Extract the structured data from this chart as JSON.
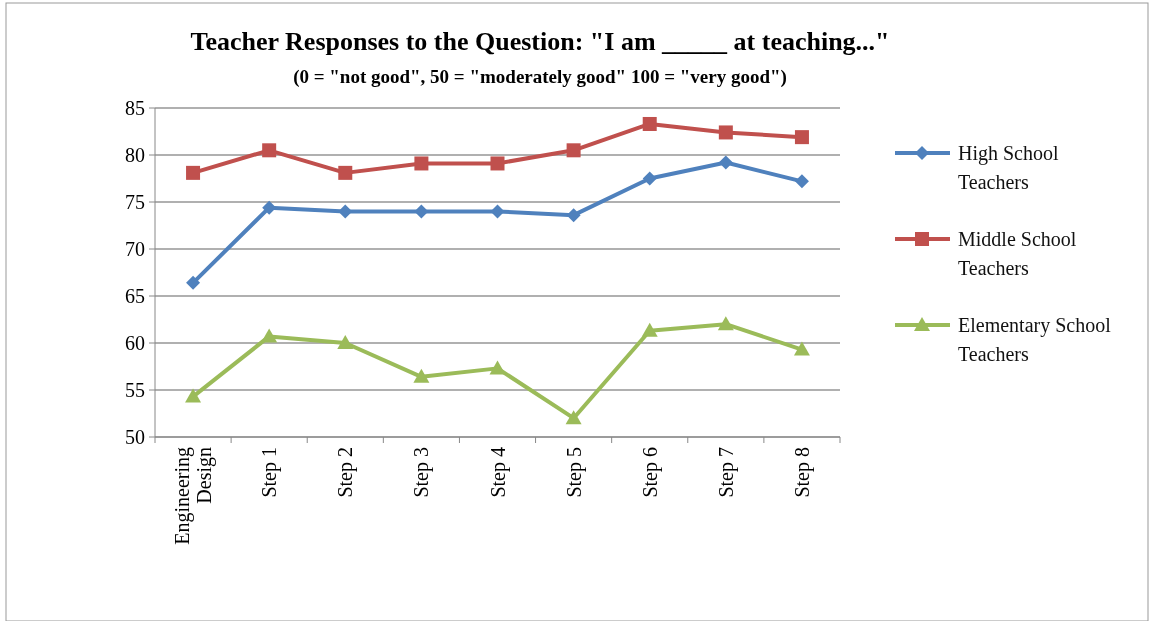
{
  "chart_data": {
    "type": "line",
    "title": "Teacher Responses to the Question: \"I am _____ at teaching...\"",
    "subtitle": "(0 = \"not good\", 50 = \"moderately good\" 100 = \"very good\")",
    "categories": [
      "Engineering Design",
      "Step 1",
      "Step 2",
      "Step 3",
      "Step 4",
      "Step 5",
      "Step 6",
      "Step 7",
      "Step 8"
    ],
    "series": [
      {
        "name": "High School Teachers",
        "color": "#4f81bd",
        "marker": "diamond",
        "values": [
          66.4,
          74.4,
          74.0,
          74.0,
          74.0,
          73.6,
          77.5,
          79.2,
          77.2
        ]
      },
      {
        "name": "Middle School Teachers",
        "color": "#c0504d",
        "marker": "square",
        "values": [
          78.1,
          80.5,
          78.1,
          79.1,
          79.1,
          80.5,
          83.3,
          82.4,
          81.9
        ]
      },
      {
        "name": "Elementary School Teachers",
        "color": "#9bbb59",
        "marker": "triangle",
        "values": [
          54.3,
          60.7,
          60.0,
          56.4,
          57.3,
          52.0,
          61.3,
          62.0,
          59.3
        ]
      }
    ],
    "ylim": [
      50,
      85
    ],
    "yticks": [
      50,
      55,
      60,
      65,
      70,
      75,
      80,
      85
    ],
    "grid": "y",
    "legend": "right",
    "line_style": "solid"
  }
}
